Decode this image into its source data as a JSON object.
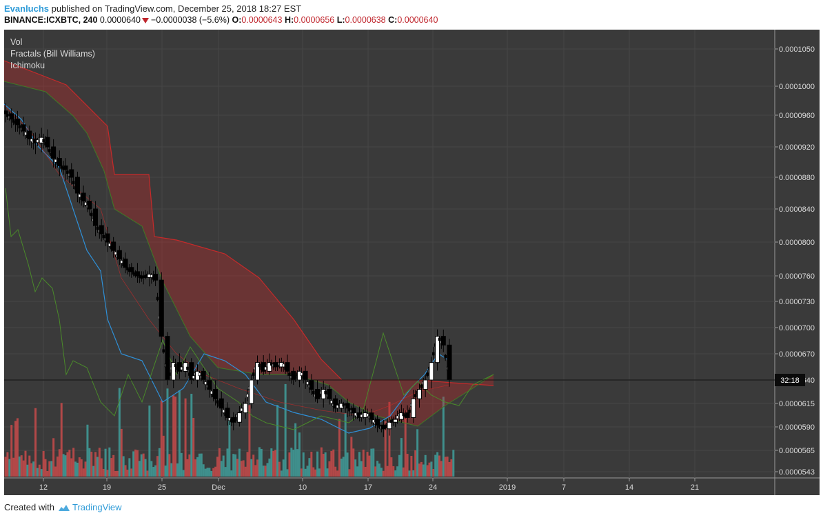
{
  "header": {
    "author": "Evanluchs",
    "published_text": "published on TradingView.com, December 25, 2018 18:27 EST",
    "symbol": "BINANCE:ICXBTC, 240",
    "last_price": "0.0000640",
    "change": "−0.0000038 (−5.6%)",
    "open_label": "O:",
    "open": "0.0000643",
    "high_label": "H:",
    "high": "0.0000656",
    "low_label": "L:",
    "low": "0.0000638",
    "close_label": "C:",
    "close": "0.0000640"
  },
  "legend": {
    "items": [
      "Vol",
      "Fractals (Bill Williams)",
      "Ichimoku"
    ]
  },
  "price_axis": {
    "ticks": [
      "0.0001050",
      "0.0001000",
      "0.0000960",
      "0.0000920",
      "0.0000880",
      "0.0000840",
      "0.0000800",
      "0.0000760",
      "0.0000730",
      "0.0000700",
      "0.0000670",
      "0.0000640",
      "0.0000615",
      "0.0000590",
      "0.0000565",
      "0.0000543"
    ],
    "countdown": "32:18"
  },
  "time_axis": {
    "ticks": [
      "12",
      "19",
      "25",
      "Dec",
      "10",
      "17",
      "24",
      "2019",
      "7",
      "14",
      "21"
    ]
  },
  "footer": {
    "created_with": "Created with",
    "brand": "TradingView"
  },
  "colors": {
    "chart_bg": "#3a3a3a",
    "grid": "#464646",
    "cloud_red": "#c62a2a",
    "tenkan_blue": "#2f8fd6",
    "chikou_green": "#4a8a2a",
    "vol_up": "#3f8f8c",
    "vol_down": "#b24848",
    "author": "#2e9bd8"
  },
  "chart_data": {
    "type": "candlestick",
    "title": "",
    "xlabel": "",
    "ylabel": "",
    "ylim": [
      5.4e-05,
      0.000107
    ],
    "close_series": [
      9.62e-05,
      9.55e-05,
      9.48e-05,
      9.4e-05,
      9.3e-05,
      9.25e-05,
      9.32e-05,
      9.2e-05,
      9.05e-05,
      8.95e-05,
      8.9e-05,
      8.8e-05,
      8.6e-05,
      8.5e-05,
      8.4e-05,
      8.2e-05,
      8.1e-05,
      8e-05,
      7.9e-05,
      7.8e-05,
      7.7e-05,
      7.65e-05,
      7.6e-05,
      7.58e-05,
      7.62e-05,
      7.55e-05,
      6.9e-05,
      6.4e-05,
      6.6e-05,
      6.5e-05,
      6.6e-05,
      6.4e-05,
      6.5e-05,
      6.4e-05,
      6.3e-05,
      6.2e-05,
      6.1e-05,
      6e-05,
      5.95e-05,
      6.05e-05,
      6.15e-05,
      6.4e-05,
      6.6e-05,
      6.5e-05,
      6.6e-05,
      6.55e-05,
      6.6e-05,
      6.5e-05,
      6.4e-05,
      6.5e-05,
      6.4e-05,
      6.3e-05,
      6.2e-05,
      6.3e-05,
      6.2e-05,
      6.1e-05,
      6.15e-05,
      6.1e-05,
      6.05e-05,
      6e-05,
      6.05e-05,
      5.98e-05,
      5.92e-05,
      5.88e-05,
      5.95e-05,
      5.98e-05,
      6.05e-05,
      6e-05,
      6.2e-05,
      6.3e-05,
      6.4e-05,
      6.6e-05,
      6.9e-05,
      6.8e-05,
      6.4e-05
    ]
  }
}
